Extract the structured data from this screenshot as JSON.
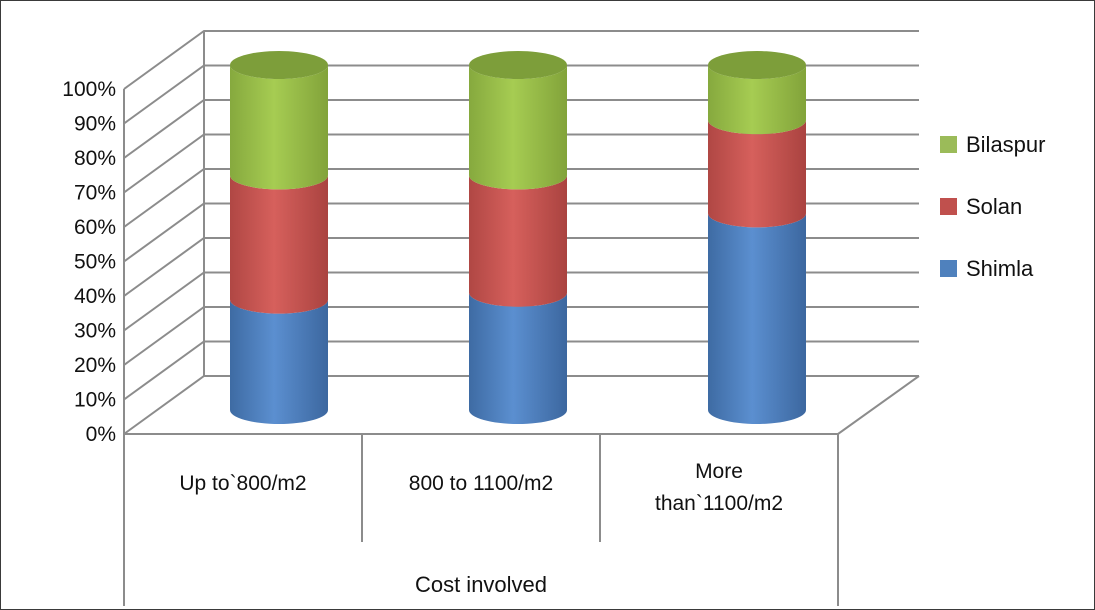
{
  "chart_data": {
    "type": "bar",
    "subtype": "stacked-100-percent-3d-cylinder",
    "title": "",
    "xlabel": "Cost involved",
    "ylabel": "",
    "categories": [
      "Up to`800/m2",
      "800 to 1100/m2",
      "More than`1100/m2"
    ],
    "category_lines": [
      [
        "Up to`800/m2"
      ],
      [
        "800 to 1100/m2"
      ],
      [
        "More",
        "than`1100/m2"
      ]
    ],
    "series": [
      {
        "name": "Shimla",
        "values": [
          32,
          34,
          57
        ],
        "color": "#4f81bd"
      },
      {
        "name": "Solan",
        "values": [
          36,
          34,
          27
        ],
        "color": "#c0504d"
      },
      {
        "name": "Bilaspur",
        "values": [
          32,
          32,
          16
        ],
        "color": "#9bbb59"
      }
    ],
    "ylim": [
      0,
      100
    ],
    "yticks": [
      "0%",
      "10%",
      "20%",
      "30%",
      "40%",
      "50%",
      "60%",
      "70%",
      "80%",
      "90%",
      "100%"
    ],
    "grid": true,
    "legend_position": "right"
  }
}
